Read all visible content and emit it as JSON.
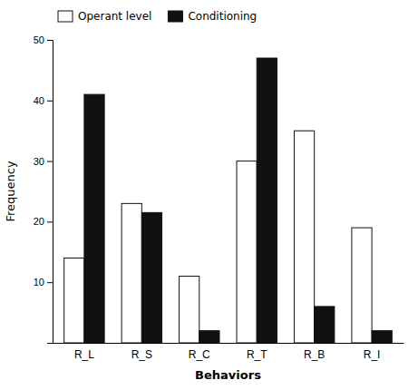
{
  "chart_data": {
    "type": "bar",
    "categories": [
      "R_L",
      "R_S",
      "R_C",
      "R_T",
      "R_B",
      "R_I"
    ],
    "series": [
      {
        "name": "Operant level",
        "color": "#ffffff",
        "values": [
          14,
          23,
          11,
          30,
          35,
          19
        ]
      },
      {
        "name": "Conditioning",
        "color": "#111111",
        "values": [
          41,
          21.5,
          2,
          47,
          6,
          2
        ]
      }
    ],
    "xlabel": "Behaviors",
    "ylabel": "Frequency",
    "ylim": [
      0,
      50
    ],
    "yticks": [
      10,
      20,
      30,
      40,
      50
    ],
    "legend": "upper-left",
    "grid": false
  }
}
